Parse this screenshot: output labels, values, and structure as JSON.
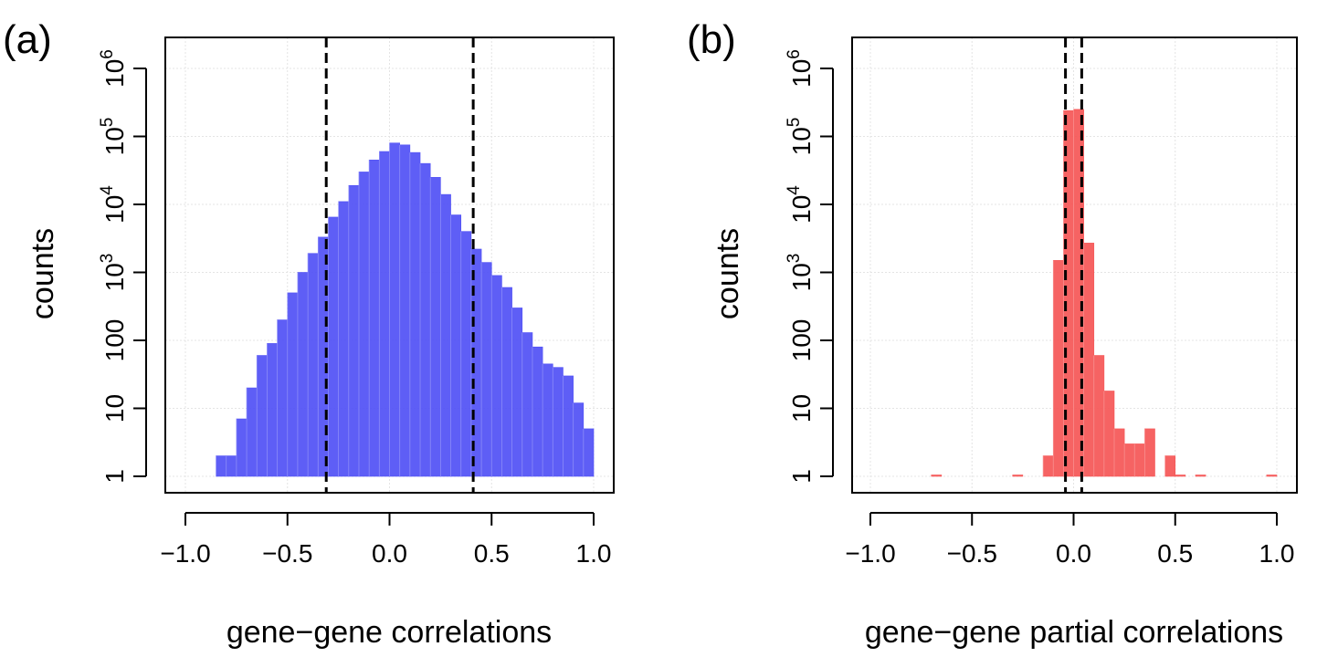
{
  "chart_data": [
    {
      "type": "bar",
      "panel_label": "(a)",
      "xlabel": "gene−gene correlations",
      "ylabel": "counts",
      "xlim": [
        -1.0,
        1.0
      ],
      "yscale": "log10",
      "ylim": [
        1,
        1000000
      ],
      "x_ticks": [
        -1.0,
        -0.5,
        0.0,
        0.5,
        1.0
      ],
      "x_tick_labels": [
        "−1.0",
        "−0.5",
        "0.0",
        "0.5",
        "1.0"
      ],
      "y_ticks": [
        1,
        10,
        100,
        1000,
        10000,
        100000,
        1000000
      ],
      "y_tick_labels": [
        {
          "base": "1",
          "exp": ""
        },
        {
          "base": "10",
          "exp": ""
        },
        {
          "base": "100",
          "exp": ""
        },
        {
          "base": "10",
          "exp": "3"
        },
        {
          "base": "10",
          "exp": "4"
        },
        {
          "base": "10",
          "exp": "5"
        },
        {
          "base": "10",
          "exp": "6"
        }
      ],
      "grid": true,
      "bar_color": "#5050f5",
      "bin_width": 0.05,
      "bins_start": [
        -0.85,
        -0.8,
        -0.75,
        -0.7,
        -0.65,
        -0.6,
        -0.55,
        -0.5,
        -0.45,
        -0.4,
        -0.35,
        -0.3,
        -0.25,
        -0.2,
        -0.15,
        -0.1,
        -0.05,
        0.0,
        0.05,
        0.1,
        0.15,
        0.2,
        0.25,
        0.3,
        0.35,
        0.4,
        0.45,
        0.5,
        0.55,
        0.6,
        0.65,
        0.7,
        0.75,
        0.8,
        0.85,
        0.9,
        0.95
      ],
      "counts": [
        2,
        2,
        7,
        20,
        60,
        90,
        200,
        500,
        1000,
        1900,
        3300,
        6500,
        11000,
        19000,
        30000,
        45000,
        60000,
        80000,
        75000,
        58000,
        40000,
        25000,
        14000,
        7000,
        4000,
        2200,
        1400,
        900,
        600,
        300,
        130,
        80,
        45,
        40,
        30,
        12,
        5
      ],
      "vlines": [
        -0.31,
        0.41
      ]
    },
    {
      "type": "bar",
      "panel_label": "(b)",
      "xlabel": "gene−gene partial correlations",
      "ylabel": "counts",
      "xlim": [
        -1.0,
        1.0
      ],
      "yscale": "log10",
      "ylim": [
        1,
        1000000
      ],
      "x_ticks": [
        -1.0,
        -0.5,
        0.0,
        0.5,
        1.0
      ],
      "x_tick_labels": [
        "−1.0",
        "−0.5",
        "0.0",
        "0.5",
        "1.0"
      ],
      "y_ticks": [
        1,
        10,
        100,
        1000,
        10000,
        100000,
        1000000
      ],
      "y_tick_labels": [
        {
          "base": "1",
          "exp": ""
        },
        {
          "base": "10",
          "exp": ""
        },
        {
          "base": "100",
          "exp": ""
        },
        {
          "base": "10",
          "exp": "3"
        },
        {
          "base": "10",
          "exp": "4"
        },
        {
          "base": "10",
          "exp": "5"
        },
        {
          "base": "10",
          "exp": "6"
        }
      ],
      "grid": true,
      "bar_color": "#f55656",
      "bin_width": 0.05,
      "bins_start": [
        -0.7,
        -0.3,
        -0.15,
        -0.1,
        -0.05,
        0.0,
        0.05,
        0.1,
        0.15,
        0.2,
        0.25,
        0.3,
        0.35,
        0.45,
        0.5,
        0.6,
        0.95
      ],
      "counts": [
        1,
        1,
        2,
        1500,
        240000,
        250000,
        2700,
        60,
        18,
        5,
        3,
        3,
        5,
        2,
        1,
        1,
        1
      ],
      "vlines": [
        -0.04,
        0.04
      ]
    }
  ]
}
